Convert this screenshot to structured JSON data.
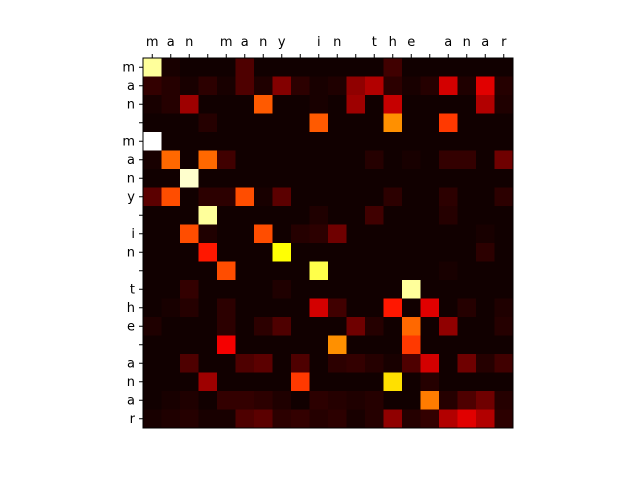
{
  "chart_data": {
    "type": "heatmap",
    "colormap": "hot",
    "vmin": 0,
    "vmax": 1,
    "x_ticklabels": [
      "m",
      "a",
      "n",
      " ",
      "m",
      "a",
      "n",
      "y",
      " ",
      "i",
      "n",
      " ",
      "t",
      "h",
      "e",
      " ",
      "a",
      "n",
      "a",
      "r"
    ],
    "y_ticklabels": [
      "m",
      "a",
      "n",
      " ",
      "m",
      "a",
      "n",
      "y",
      " ",
      "i",
      "n",
      " ",
      "t",
      "h",
      "e",
      " ",
      "a",
      "n",
      "a",
      "r"
    ],
    "x_ticks_position": "top",
    "grid": false,
    "matrix": [
      [
        0.9,
        0.02,
        0.01,
        0.01,
        0.01,
        0.1,
        0.01,
        0.01,
        0.01,
        0.01,
        0.01,
        0.01,
        0.01,
        0.08,
        0.01,
        0.01,
        0.01,
        0.01,
        0.01,
        0.01
      ],
      [
        0.06,
        0.04,
        0.02,
        0.05,
        0.02,
        0.1,
        0.03,
        0.18,
        0.05,
        0.02,
        0.03,
        0.2,
        0.25,
        0.05,
        0.02,
        0.04,
        0.3,
        0.03,
        0.32,
        0.04
      ],
      [
        0.02,
        0.04,
        0.22,
        0.01,
        0.01,
        0.01,
        0.5,
        0.01,
        0.01,
        0.02,
        0.01,
        0.22,
        0.01,
        0.28,
        0.01,
        0.01,
        0.01,
        0.01,
        0.25,
        0.03
      ],
      [
        0.01,
        0.01,
        0.01,
        0.04,
        0.01,
        0.01,
        0.01,
        0.01,
        0.01,
        0.5,
        0.01,
        0.01,
        0.01,
        0.58,
        0.01,
        0.01,
        0.45,
        0.01,
        0.01,
        0.01
      ],
      [
        1.0,
        0.01,
        0.01,
        0.01,
        0.01,
        0.01,
        0.01,
        0.01,
        0.01,
        0.01,
        0.01,
        0.01,
        0.01,
        0.01,
        0.01,
        0.01,
        0.01,
        0.01,
        0.01,
        0.01
      ],
      [
        0.02,
        0.52,
        0.01,
        0.52,
        0.08,
        0.01,
        0.01,
        0.01,
        0.01,
        0.01,
        0.01,
        0.01,
        0.04,
        0.01,
        0.02,
        0.01,
        0.06,
        0.06,
        0.01,
        0.15
      ],
      [
        0.01,
        0.01,
        0.95,
        0.01,
        0.01,
        0.01,
        0.01,
        0.01,
        0.01,
        0.01,
        0.01,
        0.01,
        0.01,
        0.01,
        0.01,
        0.01,
        0.01,
        0.01,
        0.01,
        0.01
      ],
      [
        0.12,
        0.48,
        0.01,
        0.05,
        0.05,
        0.48,
        0.02,
        0.12,
        0.01,
        0.01,
        0.01,
        0.01,
        0.01,
        0.05,
        0.01,
        0.01,
        0.05,
        0.01,
        0.01,
        0.05
      ],
      [
        0.01,
        0.01,
        0.01,
        0.9,
        0.01,
        0.01,
        0.01,
        0.01,
        0.01,
        0.03,
        0.01,
        0.01,
        0.08,
        0.01,
        0.01,
        0.01,
        0.04,
        0.01,
        0.01,
        0.01
      ],
      [
        0.01,
        0.01,
        0.48,
        0.03,
        0.01,
        0.01,
        0.48,
        0.01,
        0.04,
        0.05,
        0.15,
        0.01,
        0.01,
        0.01,
        0.01,
        0.01,
        0.01,
        0.01,
        0.02,
        0.01
      ],
      [
        0.01,
        0.01,
        0.01,
        0.4,
        0.01,
        0.01,
        0.01,
        0.75,
        0.01,
        0.01,
        0.01,
        0.01,
        0.01,
        0.01,
        0.01,
        0.01,
        0.01,
        0.01,
        0.05,
        0.01
      ],
      [
        0.01,
        0.01,
        0.01,
        0.01,
        0.48,
        0.01,
        0.01,
        0.01,
        0.01,
        0.82,
        0.01,
        0.01,
        0.01,
        0.01,
        0.01,
        0.01,
        0.02,
        0.01,
        0.01,
        0.01
      ],
      [
        0.01,
        0.01,
        0.06,
        0.01,
        0.01,
        0.01,
        0.01,
        0.03,
        0.01,
        0.01,
        0.01,
        0.01,
        0.01,
        0.01,
        0.9,
        0.01,
        0.01,
        0.01,
        0.01,
        0.01
      ],
      [
        0.01,
        0.02,
        0.04,
        0.01,
        0.05,
        0.01,
        0.01,
        0.01,
        0.01,
        0.3,
        0.08,
        0.01,
        0.01,
        0.4,
        0.01,
        0.32,
        0.01,
        0.04,
        0.01,
        0.03
      ],
      [
        0.03,
        0.01,
        0.01,
        0.01,
        0.05,
        0.01,
        0.05,
        0.1,
        0.01,
        0.01,
        0.01,
        0.15,
        0.04,
        0.01,
        0.52,
        0.01,
        0.2,
        0.01,
        0.01,
        0.04
      ],
      [
        0.01,
        0.01,
        0.01,
        0.01,
        0.35,
        0.01,
        0.01,
        0.01,
        0.01,
        0.01,
        0.58,
        0.01,
        0.01,
        0.01,
        0.45,
        0.01,
        0.01,
        0.01,
        0.01,
        0.01
      ],
      [
        0.01,
        0.01,
        0.1,
        0.01,
        0.01,
        0.1,
        0.12,
        0.01,
        0.1,
        0.01,
        0.05,
        0.06,
        0.04,
        0.02,
        0.1,
        0.3,
        0.01,
        0.15,
        0.04,
        0.08
      ],
      [
        0.01,
        0.01,
        0.01,
        0.22,
        0.01,
        0.01,
        0.01,
        0.01,
        0.45,
        0.01,
        0.01,
        0.01,
        0.01,
        0.7,
        0.01,
        0.04,
        0.01,
        0.01,
        0.01,
        0.01
      ],
      [
        0.01,
        0.02,
        0.03,
        0.01,
        0.06,
        0.06,
        0.05,
        0.03,
        0.01,
        0.05,
        0.04,
        0.03,
        0.04,
        0.01,
        0.01,
        0.55,
        0.04,
        0.1,
        0.15,
        0.04
      ],
      [
        0.02,
        0.03,
        0.04,
        0.02,
        0.02,
        0.1,
        0.12,
        0.05,
        0.06,
        0.04,
        0.05,
        0.02,
        0.04,
        0.2,
        0.04,
        0.06,
        0.25,
        0.32,
        0.25,
        0.05
      ]
    ]
  }
}
